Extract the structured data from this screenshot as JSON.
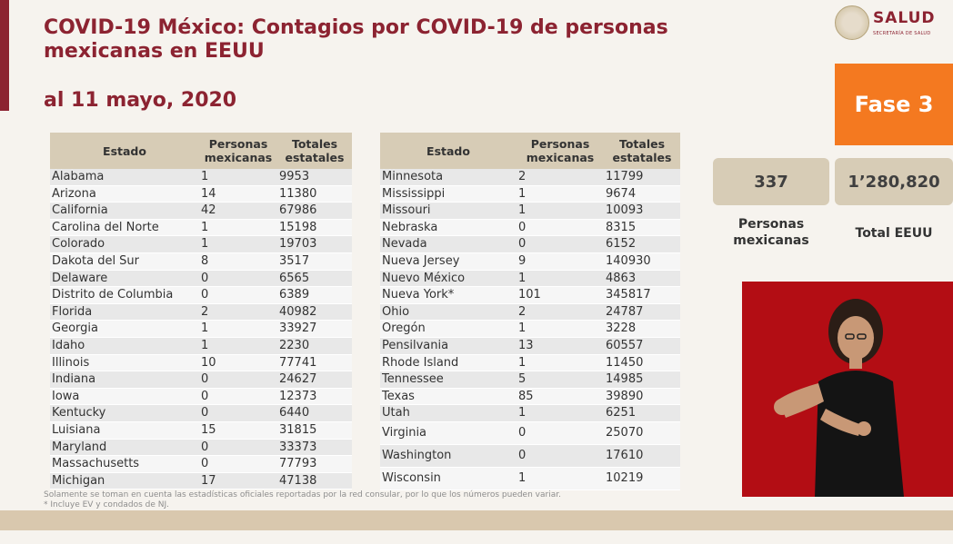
{
  "header": {
    "title": "COVID-19 México: Contagios por COVID-19 de personas mexicanas en EEUU",
    "subtitle": "al 11 mayo, 2020"
  },
  "logo": {
    "name": "SALUD",
    "tagline": "SECRETARÍA DE SALUD"
  },
  "fase": {
    "label": "Fase 3",
    "color": "#f47920"
  },
  "stats": {
    "personas_value": "337",
    "personas_label": "Personas mexicanas",
    "total_value": "1’280,820",
    "total_label": "Total EEUU"
  },
  "table_headers": {
    "estado": "Estado",
    "personas": "Personas mexicanas",
    "totales": "Totales estatales"
  },
  "left_rows": [
    {
      "estado": "Alabama",
      "personas": "1",
      "totales": "9953"
    },
    {
      "estado": "Arizona",
      "personas": "14",
      "totales": "11380"
    },
    {
      "estado": "California",
      "personas": "42",
      "totales": "67986"
    },
    {
      "estado": "Carolina del Norte",
      "personas": "1",
      "totales": "15198"
    },
    {
      "estado": "Colorado",
      "personas": "1",
      "totales": "19703"
    },
    {
      "estado": "Dakota del Sur",
      "personas": "8",
      "totales": "3517"
    },
    {
      "estado": "Delaware",
      "personas": "0",
      "totales": "6565"
    },
    {
      "estado": "Distrito de Columbia",
      "personas": "0",
      "totales": "6389"
    },
    {
      "estado": "Florida",
      "personas": "2",
      "totales": "40982"
    },
    {
      "estado": "Georgia",
      "personas": "1",
      "totales": "33927"
    },
    {
      "estado": "Idaho",
      "personas": "1",
      "totales": "2230"
    },
    {
      "estado": "Illinois",
      "personas": "10",
      "totales": "77741"
    },
    {
      "estado": "Indiana",
      "personas": "0",
      "totales": "24627"
    },
    {
      "estado": "Iowa",
      "personas": "0",
      "totales": "12373"
    },
    {
      "estado": "Kentucky",
      "personas": "0",
      "totales": "6440"
    },
    {
      "estado": "Luisiana",
      "personas": "15",
      "totales": "31815"
    },
    {
      "estado": "Maryland",
      "personas": "0",
      "totales": "33373"
    },
    {
      "estado": "Massachusetts",
      "personas": "0",
      "totales": "77793"
    },
    {
      "estado": "Michigan",
      "personas": "17",
      "totales": "47138"
    }
  ],
  "right_rows": [
    {
      "estado": "Minnesota",
      "personas": "2",
      "totales": "11799"
    },
    {
      "estado": "Mississippi",
      "personas": "1",
      "totales": "9674"
    },
    {
      "estado": "Missouri",
      "personas": "1",
      "totales": "10093"
    },
    {
      "estado": "Nebraska",
      "personas": "0",
      "totales": "8315"
    },
    {
      "estado": "Nevada",
      "personas": "0",
      "totales": "6152"
    },
    {
      "estado": "Nueva Jersey",
      "personas": "9",
      "totales": "140930"
    },
    {
      "estado": "Nuevo México",
      "personas": "1",
      "totales": "4863"
    },
    {
      "estado": "Nueva York*",
      "personas": "101",
      "totales": "345817"
    },
    {
      "estado": "Ohio",
      "personas": "2",
      "totales": "24787"
    },
    {
      "estado": "Oregón",
      "personas": "1",
      "totales": "3228"
    },
    {
      "estado": "Pensilvania",
      "personas": "13",
      "totales": "60557"
    },
    {
      "estado": "Rhode Island",
      "personas": "1",
      "totales": "11450"
    },
    {
      "estado": "Tennessee",
      "personas": "5",
      "totales": "14985"
    },
    {
      "estado": "Texas",
      "personas": "85",
      "totales": "39890"
    },
    {
      "estado": "Utah",
      "personas": "1",
      "totales": "6251"
    },
    {
      "estado": "Virginia",
      "personas": "0",
      "totales": "25070"
    },
    {
      "estado": "Washington",
      "personas": "0",
      "totales": "17610"
    },
    {
      "estado": "Wisconsin",
      "personas": "1",
      "totales": "10219"
    }
  ],
  "footnotes": {
    "line1": "Solamente se toman en cuenta las estadísticas oficiales reportadas por la red consular, por lo que los números pueden variar.",
    "line2": "* Incluye EV y condados de NJ."
  },
  "colors": {
    "brand": "#8c2331",
    "header_bg": "#d7ccb6",
    "video_bg": "#b30d14"
  }
}
